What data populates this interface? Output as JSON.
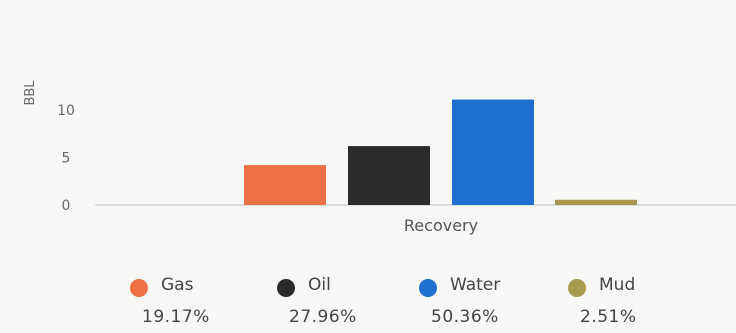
{
  "chart_data": {
    "type": "bar",
    "categories": [
      "Recovery"
    ],
    "xlabel": "Recovery",
    "ylabel": "BBL",
    "ylim": [
      0,
      10
    ],
    "yticks": [
      0,
      5,
      10
    ],
    "grid": false,
    "legend_placement": "bottom",
    "series": [
      {
        "name": "Gas",
        "values": [
          4.2
        ],
        "percent": "19.17%",
        "color": "#ee7146"
      },
      {
        "name": "Oil",
        "values": [
          6.2
        ],
        "percent": "27.96%",
        "color": "#2b2b2b"
      },
      {
        "name": "Water",
        "values": [
          11.1
        ],
        "percent": "50.36%",
        "color": "#1f6fd1"
      },
      {
        "name": "Mud",
        "values": [
          0.55
        ],
        "percent": "2.51%",
        "color": "#a79a4c"
      }
    ]
  }
}
